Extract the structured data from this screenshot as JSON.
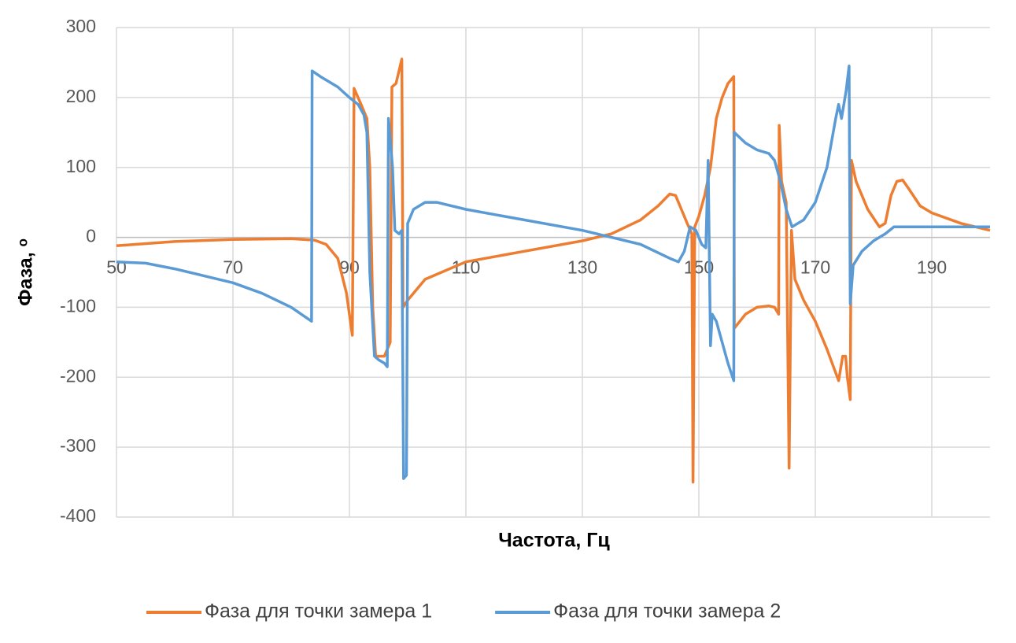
{
  "chart_data": {
    "type": "line",
    "x_label": "Частота, Гц",
    "y_label": "Фаза, ᵒ",
    "xlim": [
      50,
      200
    ],
    "xticks": [
      50,
      70,
      90,
      110,
      130,
      150,
      170,
      190
    ],
    "ylim": [
      -400,
      300
    ],
    "yticks": [
      -400,
      -300,
      -200,
      -100,
      0,
      100,
      200,
      300
    ],
    "grid": true,
    "legend": "bottom",
    "series": [
      {
        "name": "Фаза для точки замера 1",
        "color": "#ed7d31",
        "x": [
          50,
          60,
          70,
          80,
          84,
          86,
          88,
          89.5,
          90.5,
          90.8,
          92,
          93,
          93.5,
          94,
          94.5,
          96,
          97,
          97.3,
          98,
          99,
          99.2,
          100,
          103,
          110,
          120,
          130,
          135,
          140,
          143,
          145,
          146,
          147,
          148,
          148.8,
          149,
          149.3,
          150,
          151,
          152,
          153,
          154,
          155,
          156,
          156.1,
          158,
          160,
          162,
          163,
          163.7,
          163.8,
          164.2,
          165,
          165.5,
          165.9,
          166.5,
          168,
          170,
          172,
          174,
          174.7,
          175.2,
          175.5,
          176,
          176.2,
          177,
          179,
          181,
          182,
          183,
          184,
          185,
          186,
          188,
          190,
          195,
          200
        ],
        "values": [
          -12,
          -6,
          -3,
          -2,
          -4,
          -10,
          -30,
          -80,
          -140,
          213,
          190,
          170,
          100,
          -100,
          -170,
          -170,
          -150,
          215,
          220,
          255,
          -100,
          -90,
          -60,
          -35,
          -20,
          -5,
          5,
          25,
          45,
          62,
          60,
          40,
          20,
          5,
          -350,
          15,
          30,
          60,
          100,
          170,
          200,
          220,
          230,
          -130,
          -110,
          -100,
          -98,
          -100,
          -110,
          160,
          80,
          50,
          -330,
          10,
          -60,
          -90,
          -120,
          -160,
          -205,
          -170,
          -170,
          -200,
          -232,
          110,
          80,
          40,
          15,
          20,
          60,
          80,
          82,
          70,
          45,
          35,
          20,
          10
        ]
      },
      {
        "name": "Фаза для точки замера 2",
        "color": "#5b9bd5",
        "x": [
          50,
          55,
          60,
          65,
          70,
          75,
          80,
          83.5,
          83.6,
          85,
          88,
          90,
          91.5,
          92.5,
          93,
          93.5,
          94.3,
          95,
          96,
          96.5,
          96.7,
          97.4,
          97.8,
          98.5,
          99,
          99.3,
          99.8,
          100,
          101,
          103,
          105,
          110,
          120,
          130,
          135,
          140,
          145,
          146.5,
          147.5,
          148.5,
          149.5,
          150.5,
          151.2,
          151.6,
          152,
          152.3,
          153,
          155,
          156,
          156.1,
          158,
          160,
          162,
          163,
          164,
          165,
          166,
          168,
          170,
          172,
          173.5,
          174,
          174.5,
          175.3,
          175.8,
          176,
          176.5,
          178,
          180,
          182,
          183.5,
          185,
          190,
          200
        ],
        "values": [
          -35,
          -37,
          -45,
          -55,
          -65,
          -80,
          -100,
          -120,
          238,
          230,
          215,
          200,
          190,
          175,
          150,
          -50,
          -170,
          -175,
          -180,
          -185,
          170,
          100,
          10,
          5,
          10,
          -345,
          -340,
          20,
          40,
          50,
          50,
          40,
          25,
          10,
          0,
          -10,
          -30,
          -35,
          -20,
          15,
          10,
          -10,
          -15,
          110,
          -155,
          -110,
          -120,
          -180,
          -205,
          150,
          135,
          125,
          120,
          110,
          80,
          40,
          15,
          25,
          50,
          100,
          170,
          190,
          170,
          210,
          245,
          -95,
          -40,
          -20,
          -5,
          5,
          15,
          15,
          15,
          15
        ]
      }
    ]
  }
}
